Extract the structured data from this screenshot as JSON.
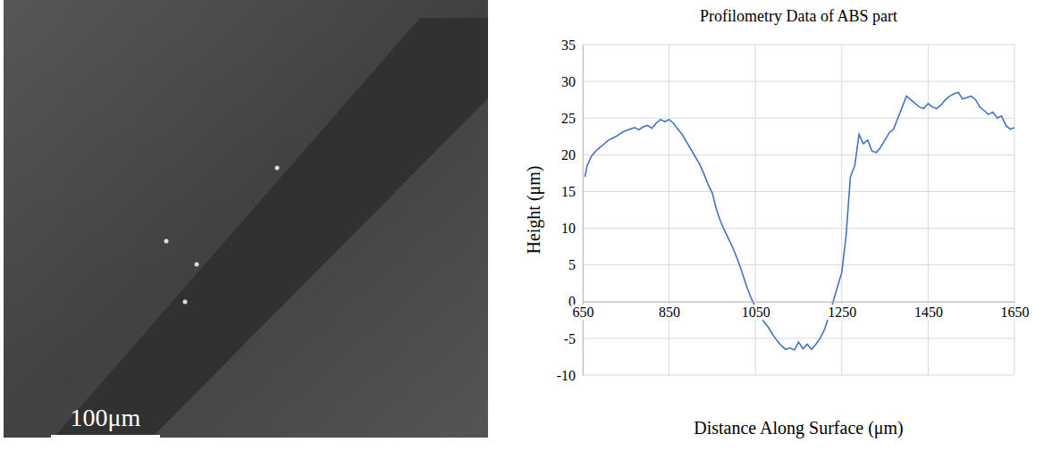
{
  "chart_data": {
    "type": "line",
    "title": "Profilometry Data of ABS part",
    "x_label": "Distance Along Surface (μm)",
    "y_label": "Height (μm)",
    "color": "#4472c4",
    "line_style": "solid",
    "grid": true,
    "xlim": [
      650,
      1650
    ],
    "xticks": [
      650,
      850,
      1050,
      1250,
      1450,
      1650
    ],
    "ylim": [
      -10,
      35
    ],
    "yticks": [
      -10,
      -5,
      0,
      5,
      10,
      15,
      20,
      25,
      30,
      35
    ],
    "x": [
      655,
      660,
      670,
      680,
      690,
      700,
      710,
      720,
      730,
      740,
      750,
      760,
      770,
      780,
      790,
      800,
      810,
      820,
      830,
      840,
      850,
      860,
      870,
      880,
      890,
      900,
      910,
      920,
      930,
      940,
      950,
      960,
      970,
      980,
      990,
      1000,
      1010,
      1020,
      1030,
      1040,
      1050,
      1060,
      1070,
      1080,
      1090,
      1100,
      1110,
      1120,
      1130,
      1140,
      1150,
      1160,
      1170,
      1180,
      1190,
      1200,
      1210,
      1220,
      1230,
      1240,
      1250,
      1260,
      1270,
      1280,
      1290,
      1300,
      1310,
      1320,
      1330,
      1340,
      1350,
      1360,
      1370,
      1380,
      1390,
      1400,
      1410,
      1420,
      1430,
      1440,
      1450,
      1460,
      1470,
      1480,
      1490,
      1500,
      1510,
      1520,
      1530,
      1540,
      1550,
      1560,
      1570,
      1580,
      1590,
      1600,
      1610,
      1620,
      1630,
      1640,
      1650
    ],
    "values": [
      17,
      18.5,
      19.8,
      20.5,
      21,
      21.5,
      22,
      22.3,
      22.6,
      23,
      23.3,
      23.5,
      23.7,
      23.4,
      23.8,
      24,
      23.6,
      24.3,
      24.8,
      24.5,
      24.8,
      24.3,
      23.5,
      22.8,
      21.8,
      20.8,
      19.8,
      18.8,
      17.5,
      16,
      14.8,
      12.5,
      10.8,
      9.5,
      8.3,
      7,
      5.5,
      3.8,
      2,
      0.5,
      -0.8,
      -1.8,
      -2.8,
      -3.5,
      -4.5,
      -5.3,
      -6,
      -6.5,
      -6.3,
      -6.6,
      -5.5,
      -6.4,
      -5.8,
      -6.5,
      -5.8,
      -5,
      -3.8,
      -2,
      0,
      2,
      4,
      9,
      17,
      18.5,
      22.8,
      21.5,
      22,
      20.5,
      20.3,
      21,
      22,
      23,
      23.5,
      25,
      26.5,
      28,
      27.5,
      27,
      26.5,
      26.3,
      27,
      26.5,
      26.3,
      26.8,
      27.5,
      28,
      28.3,
      28.5,
      27.6,
      27.8,
      28,
      27.5,
      26.5,
      26,
      25.5,
      25.8,
      25,
      25.3,
      24,
      23.5,
      23.7
    ]
  },
  "micrograph": {
    "scale_bar": "100μm"
  }
}
